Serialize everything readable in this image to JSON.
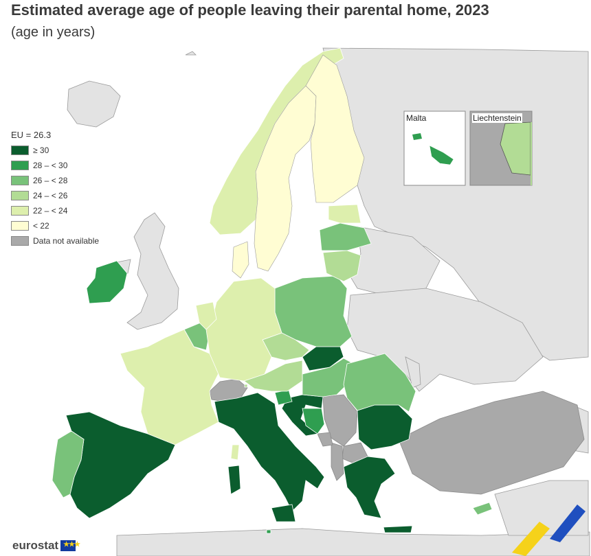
{
  "title": "Estimated average age of people leaving their parental home, 2023",
  "subtitle": "(age in years)",
  "legend": {
    "eu_value": "EU = 26.3",
    "classes": [
      {
        "label": "≥ 30",
        "color": "#0b5d2e"
      },
      {
        "label": "28 – < 30",
        "color": "#2f9e50"
      },
      {
        "label": "26 – < 28",
        "color": "#79c27a"
      },
      {
        "label": "24 – < 26",
        "color": "#b2dc95"
      },
      {
        "label": "22 – < 24",
        "color": "#ddefad"
      },
      {
        "label": "< 22",
        "color": "#fffdd3"
      },
      {
        "label": "Data not available",
        "color": "#a9a9a9"
      }
    ]
  },
  "insets": {
    "malta": "Malta",
    "liechtenstein": "Liechtenstein"
  },
  "colors": {
    "non_eu": "#e3e3e3",
    "sea": "#ffffff",
    "border": "#9a9a9a"
  },
  "logo": {
    "text": "eurostat",
    "flag_icon": "eu-flag-icon"
  }
}
